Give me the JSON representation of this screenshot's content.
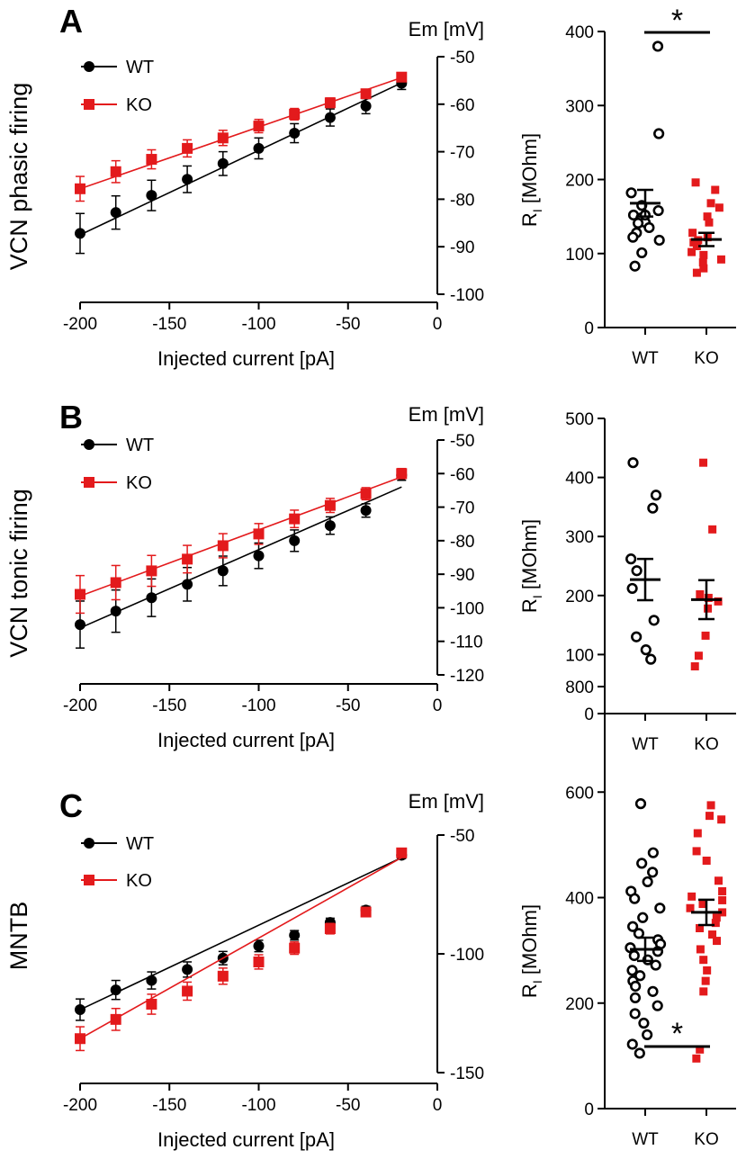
{
  "colors": {
    "wt": "#000000",
    "ko": "#e31a1c"
  },
  "panels": [
    {
      "letter": "A",
      "row_title": "VCN phasic firing",
      "iv": {
        "type": "line",
        "title": "",
        "xlabel": "Injected current [pA]",
        "ylabel": "Em [mV]",
        "xlim": [
          -200,
          0
        ],
        "xticks": [
          -200,
          -150,
          -100,
          -50,
          0
        ],
        "x_tick_labels": [
          "-200",
          "-150",
          "-100",
          "-50",
          "0"
        ],
        "ylim": [
          -100,
          -50
        ],
        "yticks": [
          -50,
          -60,
          -70,
          -80,
          -90,
          -100
        ],
        "y_tick_labels": [
          "-50",
          "-60",
          "-70",
          "-80",
          "-90",
          "-100"
        ],
        "legend": [
          "WT",
          "KO"
        ],
        "legend_position": "top-left",
        "x": [
          -200,
          -180,
          -160,
          -140,
          -120,
          -100,
          -80,
          -60,
          -40,
          -20
        ],
        "series": [
          {
            "name": "WT",
            "marker": "circle",
            "values": [
              -87.2,
              -82.8,
              -79.2,
              -75.8,
              -72.5,
              -69.3,
              -66.1,
              -62.8,
              -60.4,
              -55.6
            ],
            "errors": [
              4.2,
              3.5,
              3.2,
              2.8,
              2.5,
              2.2,
              2.0,
              1.8,
              1.6,
              1.3
            ],
            "fit": [
              -87.5,
              -55.5
            ]
          },
          {
            "name": "KO",
            "marker": "square",
            "values": [
              -77.8,
              -74.2,
              -71.6,
              -69.3,
              -67.1,
              -64.6,
              -62.1,
              -59.7,
              -57.8,
              -54.3
            ],
            "errors": [
              2.6,
              2.3,
              2.0,
              1.8,
              1.6,
              1.4,
              1.2,
              1.0,
              0.9,
              0.8
            ],
            "fit": [
              -77.8,
              -54.4
            ]
          }
        ]
      },
      "scatter": {
        "type": "scatter",
        "ylabel_main": "R",
        "ylabel_sub": "I",
        "ylabel_rest": " [MOhm]",
        "ylim": [
          0,
          400
        ],
        "yticks": [
          0,
          100,
          200,
          300,
          400
        ],
        "y_tick_labels": [
          "0",
          "100",
          "200",
          "300",
          "400"
        ],
        "categories": [
          "WT",
          "KO"
        ],
        "significance": "*",
        "groups": [
          {
            "name": "WT",
            "marker": "open-circle",
            "mean": 168,
            "sem": 18,
            "values": [
              380,
              262,
              182,
              165,
              158,
              152,
              148,
              142,
              135,
              128,
              122,
              118,
              101,
              83,
              152,
              141
            ]
          },
          {
            "name": "KO",
            "marker": "square",
            "mean": 119,
            "sem": 9,
            "values": [
              196,
              186,
              168,
              162,
              150,
              142,
              128,
              122,
              118,
              115,
              110,
              102,
              98,
              92,
              88,
              80,
              74
            ]
          }
        ]
      }
    },
    {
      "letter": "B",
      "row_title": "VCN tonic firing",
      "iv": {
        "type": "line",
        "title": "",
        "xlabel": "Injected current [pA]",
        "ylabel": "Em [mV]",
        "xlim": [
          -200,
          0
        ],
        "xticks": [
          -200,
          -150,
          -100,
          -50,
          0
        ],
        "x_tick_labels": [
          "-200",
          "-150",
          "-100",
          "-50",
          "0"
        ],
        "ylim": [
          -120,
          -50
        ],
        "yticks": [
          -50,
          -60,
          -70,
          -80,
          -90,
          -100,
          -110,
          -120
        ],
        "y_tick_labels": [
          "-50",
          "-60",
          "-70",
          "-80",
          "-90",
          "-100",
          "-110",
          "-120"
        ],
        "legend": [
          "WT",
          "KO"
        ],
        "legend_position": "top-left",
        "x": [
          -200,
          -180,
          -160,
          -140,
          -120,
          -100,
          -80,
          -60,
          -40,
          -20
        ],
        "series": [
          {
            "name": "WT",
            "marker": "circle",
            "values": [
              -105,
              -101,
              -97,
              -93,
              -89,
              -84.5,
              -80,
              -75.5,
              -71,
              -60.5
            ],
            "errors": [
              7.0,
              6.3,
              5.6,
              5.0,
              4.4,
              3.8,
              3.2,
              2.6,
              2.0,
              1.5
            ],
            "fit": [
              -106,
              -64
            ]
          },
          {
            "name": "KO",
            "marker": "square",
            "values": [
              -96,
              -92.5,
              -89,
              -85.5,
              -81.5,
              -78,
              -73.5,
              -69.5,
              -66,
              -60
            ],
            "errors": [
              5.6,
              5.1,
              4.6,
              4.1,
              3.6,
              3.1,
              2.6,
              2.1,
              1.8,
              1.5
            ],
            "fit": [
              -96.5,
              -61
            ]
          }
        ]
      },
      "scatter": {
        "type": "scatter",
        "ylabel_main": "R",
        "ylabel_sub": "I",
        "ylabel_rest": " [MOhm]",
        "ylim": [
          0,
          500
        ],
        "yticks": [
          0,
          100,
          200,
          300,
          400,
          500
        ],
        "y_tick_labels": [
          "0",
          "100",
          "200",
          "300",
          "400",
          "500"
        ],
        "categories": [
          "WT",
          "KO"
        ],
        "significance": "",
        "groups": [
          {
            "name": "WT",
            "marker": "open-circle",
            "mean": 227,
            "sem": 35,
            "values": [
              425,
              370,
              348,
              262,
              242,
              212,
              158,
              130,
              108,
              92
            ]
          },
          {
            "name": "KO",
            "marker": "square",
            "mean": 193,
            "sem": 33,
            "values": [
              425,
              312,
              202,
              196,
              190,
              178,
              132,
              98,
              80
            ]
          }
        ]
      }
    },
    {
      "letter": "C",
      "row_title": "MNTB",
      "iv": {
        "type": "line",
        "title": "",
        "xlabel": "Injected current [pA]",
        "ylabel": "Em [mV]",
        "xlim": [
          -200,
          0
        ],
        "xticks": [
          -200,
          -150,
          -100,
          -50,
          0
        ],
        "x_tick_labels": [
          "-200",
          "-150",
          "-100",
          "-50",
          "0"
        ],
        "ylim": [
          -150,
          -50
        ],
        "yticks": [
          -50,
          -100,
          -150
        ],
        "y_tick_labels": [
          "-50",
          "-100",
          "-150"
        ],
        "legend": [
          "WT",
          "KO"
        ],
        "legend_position": "top-left",
        "x": [
          -200,
          -180,
          -160,
          -140,
          -120,
          -100,
          -80,
          -60,
          -40,
          -20
        ],
        "series": [
          {
            "name": "WT",
            "marker": "circle",
            "values": [
              -123.5,
              -115.2,
              -111.2,
              -106.6,
              -101.8,
              -96.7,
              -92.2,
              -86.8,
              -81.6,
              -58.5
            ],
            "errors": [
              4.5,
              4.0,
              3.6,
              3.2,
              2.8,
              2.4,
              2.0,
              1.8,
              1.6,
              1.4
            ],
            "fit": [
              -123.5,
              -59.5
            ]
          },
          {
            "name": "KO",
            "marker": "square",
            "values": [
              -135.7,
              -127.6,
              -121.2,
              -115.7,
              -109.4,
              -103.4,
              -97.6,
              -89.4,
              -82.4,
              -57.5
            ],
            "errors": [
              5.0,
              4.6,
              4.2,
              3.8,
              3.4,
              3.0,
              2.6,
              2.2,
              1.8,
              1.5
            ],
            "fit": [
              -135.7,
              -59.5
            ]
          }
        ]
      },
      "scatter": {
        "type": "scatter",
        "ylabel_main": "R",
        "ylabel_sub": "I",
        "ylabel_rest": " [MOhm]",
        "ylim": [
          0,
          800
        ],
        "yticks": [
          0,
          200,
          400,
          600,
          800
        ],
        "y_tick_labels": [
          "0",
          "200",
          "400",
          "600",
          "800"
        ],
        "categories": [
          "WT",
          "KO"
        ],
        "significance": "*",
        "groups": [
          {
            "name": "WT",
            "marker": "open-circle",
            "mean": 302,
            "sem": 22,
            "values": [
              578,
              485,
              465,
              448,
              430,
              412,
              398,
              380,
              362,
              345,
              332,
              320,
              312,
              305,
              298,
              290,
              282,
              272,
              262,
              252,
              242,
              232,
              222,
              210,
              195,
              180,
              162,
              140,
              122,
              105
            ]
          },
          {
            "name": "KO",
            "marker": "square",
            "mean": 372,
            "sem": 24,
            "values": [
              575,
              555,
              548,
              522,
              488,
              470,
              432,
              412,
              402,
              395,
              388,
              380,
              372,
              362,
              352,
              342,
              330,
              318,
              302,
              282,
              262,
              242,
              222,
              112,
              95
            ]
          }
        ]
      }
    }
  ]
}
